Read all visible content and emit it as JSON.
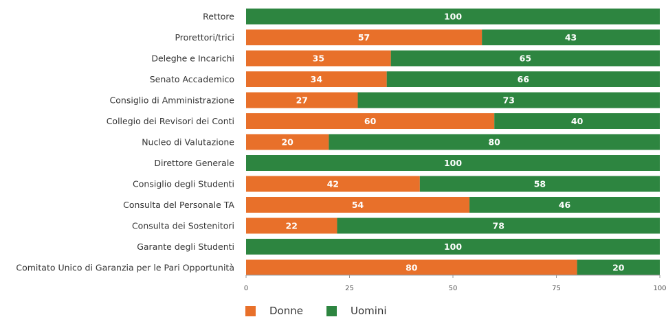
{
  "chart_data": {
    "type": "bar",
    "orientation": "horizontal",
    "stacked": true,
    "categories": [
      "Rettore",
      "Prorettori/trici",
      "Deleghe e Incarichi",
      "Senato Accademico",
      "Consiglio di Amministrazione",
      "Collegio dei Revisori dei Conti",
      "Nucleo di Valutazione",
      "Direttore Generale",
      "Consiglio degli Studenti",
      "Consulta del  Personale TA",
      "Consulta dei Sostenitori",
      "Garante degli Studenti",
      "Comitato Unico di Garanzia per le Pari Opportunità"
    ],
    "series": [
      {
        "name": "Donne",
        "color": "#e8702a",
        "values": [
          0,
          57,
          35,
          34,
          27,
          60,
          20,
          0,
          42,
          54,
          22,
          0,
          80
        ]
      },
      {
        "name": "Uomini",
        "color": "#2d8540",
        "values": [
          100,
          43,
          65,
          66,
          73,
          40,
          80,
          100,
          58,
          46,
          78,
          100,
          20
        ]
      }
    ],
    "xlim": [
      0,
      100
    ],
    "xticks": [
      "0",
      "25",
      "50",
      "75",
      "100"
    ],
    "xlabel": "",
    "ylabel": "",
    "grid": false,
    "legend_position": "bottom"
  }
}
